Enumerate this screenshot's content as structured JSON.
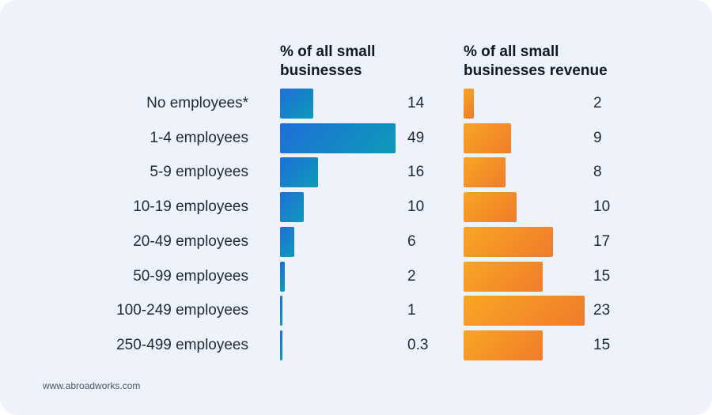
{
  "chart_data": {
    "type": "bar",
    "orientation": "horizontal",
    "categories": [
      "No employees*",
      "1-4 employees",
      "5-9 employees",
      "10-19 employees",
      "20-49 employees",
      "50-99 employees",
      "100-249 employees",
      "250-499 employees"
    ],
    "series": [
      {
        "name": "% of all small businesses",
        "title_lines": [
          "% of all small",
          "businesses"
        ],
        "values": [
          14,
          49,
          16,
          10,
          6,
          2,
          1,
          0.3
        ],
        "labels": [
          "14",
          "49",
          "16",
          "10",
          "6",
          "2",
          "1",
          "0.3"
        ],
        "color": "#1e6ed8"
      },
      {
        "name": "% of all small businesses revenue",
        "title_lines": [
          "% of all small",
          "businesses revenue"
        ],
        "values": [
          2,
          9,
          8,
          10,
          17,
          15,
          23,
          15
        ],
        "labels": [
          "2",
          "9",
          "8",
          "10",
          "17",
          "15",
          "23",
          "15"
        ],
        "color": "#f7962a"
      }
    ]
  },
  "footer": {
    "source": "www.abroadworks.com"
  }
}
